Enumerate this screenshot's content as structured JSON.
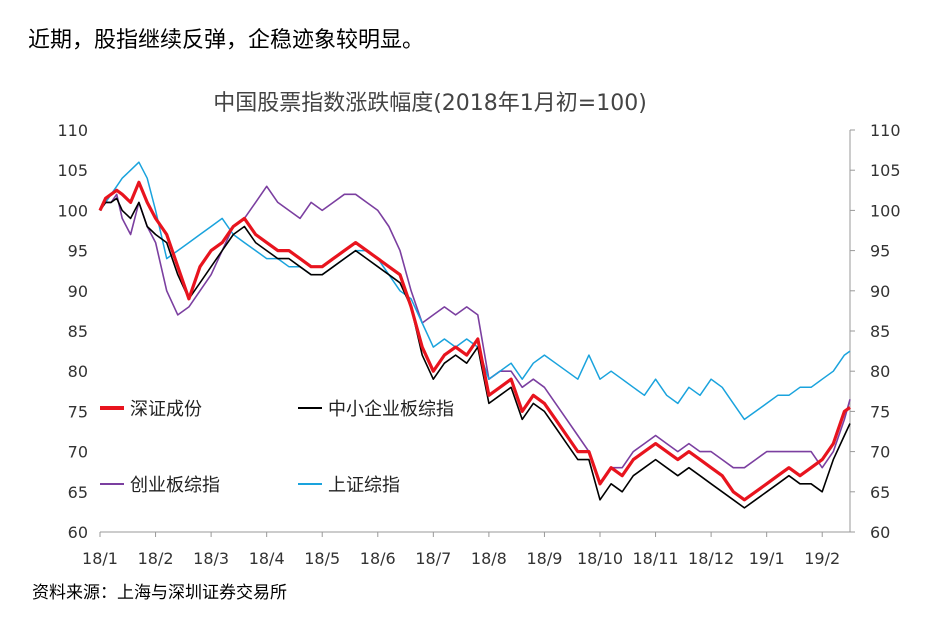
{
  "headline": "近期，股指继续反弹，企稳迹象较明显。",
  "source": "资料来源：上海与深圳证券交易所",
  "chart_data": {
    "type": "line",
    "title": "中国股票指数涨跌幅度(2018年1月初=100)",
    "ylim": [
      60,
      110
    ],
    "y_ticks": [
      60,
      65,
      70,
      75,
      80,
      85,
      90,
      95,
      100,
      105,
      110
    ],
    "y2_ticks": [
      60,
      65,
      70,
      75,
      80,
      85,
      90,
      95,
      100,
      105,
      110
    ],
    "x_ticks": [
      "18/1",
      "18/2",
      "18/3",
      "18/4",
      "18/5",
      "18/6",
      "18/7",
      "18/8",
      "18/9",
      "18/10",
      "18/11",
      "18/12",
      "19/1",
      "19/2"
    ],
    "legend_placement": "inside-lower-left",
    "series": [
      {
        "name": "深证成份",
        "color": "#e8141e",
        "x": [
          0,
          0.1,
          0.2,
          0.3,
          0.4,
          0.55,
          0.7,
          0.85,
          1.0,
          1.2,
          1.4,
          1.6,
          1.8,
          2.0,
          2.2,
          2.4,
          2.6,
          2.8,
          3.0,
          3.2,
          3.4,
          3.6,
          3.8,
          4.0,
          4.2,
          4.4,
          4.6,
          4.8,
          5.0,
          5.2,
          5.4,
          5.6,
          5.8,
          6.0,
          6.2,
          6.4,
          6.6,
          6.8,
          7.0,
          7.2,
          7.4,
          7.6,
          7.8,
          8.0,
          8.2,
          8.4,
          8.6,
          8.8,
          9.0,
          9.2,
          9.4,
          9.6,
          9.8,
          10.0,
          10.2,
          10.4,
          10.6,
          10.8,
          11.0,
          11.2,
          11.4,
          11.6,
          11.8,
          12.0,
          12.2,
          12.4,
          12.6,
          12.8,
          13.0,
          13.2,
          13.4,
          13.5
        ],
        "values": [
          100,
          101.5,
          102,
          102.5,
          102,
          101,
          103.5,
          101,
          99,
          97,
          93,
          89,
          93,
          95,
          96,
          98,
          99,
          97,
          96,
          95,
          95,
          94,
          93,
          93,
          94,
          95,
          96,
          95,
          94,
          93,
          92,
          88,
          83,
          80,
          82,
          83,
          82,
          84,
          77,
          78,
          79,
          75,
          77,
          76,
          74,
          72,
          70,
          70,
          66,
          68,
          67,
          69,
          70,
          71,
          70,
          69,
          70,
          69,
          68,
          67,
          65,
          64,
          65,
          66,
          67,
          68,
          67,
          68,
          69,
          71,
          75,
          75.5
        ]
      },
      {
        "name": "中小企业板综指",
        "color": "#000000",
        "x": [
          0,
          0.1,
          0.2,
          0.3,
          0.4,
          0.55,
          0.7,
          0.85,
          1.0,
          1.2,
          1.4,
          1.6,
          1.8,
          2.0,
          2.2,
          2.4,
          2.6,
          2.8,
          3.0,
          3.2,
          3.4,
          3.6,
          3.8,
          4.0,
          4.2,
          4.4,
          4.6,
          4.8,
          5.0,
          5.2,
          5.4,
          5.6,
          5.8,
          6.0,
          6.2,
          6.4,
          6.6,
          6.8,
          7.0,
          7.2,
          7.4,
          7.6,
          7.8,
          8.0,
          8.2,
          8.4,
          8.6,
          8.8,
          9.0,
          9.2,
          9.4,
          9.6,
          9.8,
          10.0,
          10.2,
          10.4,
          10.6,
          10.8,
          11.0,
          11.2,
          11.4,
          11.6,
          11.8,
          12.0,
          12.2,
          12.4,
          12.6,
          12.8,
          13.0,
          13.2,
          13.4,
          13.5
        ],
        "values": [
          100,
          101,
          101,
          101.5,
          100,
          99,
          101,
          98,
          97,
          96,
          92,
          89,
          91,
          93,
          95,
          97,
          98,
          96,
          95,
          94,
          94,
          93,
          92,
          92,
          93,
          94,
          95,
          94,
          93,
          92,
          91,
          88,
          82,
          79,
          81,
          82,
          81,
          83,
          76,
          77,
          78,
          74,
          76,
          75,
          73,
          71,
          69,
          69,
          64,
          66,
          65,
          67,
          68,
          69,
          68,
          67,
          68,
          67,
          66,
          65,
          64,
          63,
          64,
          65,
          66,
          67,
          66,
          66,
          65,
          69,
          72,
          73.5
        ]
      },
      {
        "name": "创业板综指",
        "color": "#7b3fa0",
        "x": [
          0,
          0.1,
          0.2,
          0.3,
          0.4,
          0.55,
          0.7,
          0.85,
          1.0,
          1.2,
          1.4,
          1.6,
          1.8,
          2.0,
          2.2,
          2.4,
          2.6,
          2.8,
          3.0,
          3.2,
          3.4,
          3.6,
          3.8,
          4.0,
          4.2,
          4.4,
          4.6,
          4.8,
          5.0,
          5.2,
          5.4,
          5.6,
          5.8,
          6.0,
          6.2,
          6.4,
          6.6,
          6.8,
          7.0,
          7.2,
          7.4,
          7.6,
          7.8,
          8.0,
          8.2,
          8.4,
          8.6,
          8.8,
          9.0,
          9.2,
          9.4,
          9.6,
          9.8,
          10.0,
          10.2,
          10.4,
          10.6,
          10.8,
          11.0,
          11.2,
          11.4,
          11.6,
          11.8,
          12.0,
          12.2,
          12.4,
          12.6,
          12.8,
          13.0,
          13.2,
          13.4,
          13.5
        ],
        "values": [
          100,
          101,
          101,
          102,
          99,
          97,
          101,
          98,
          96,
          90,
          87,
          88,
          90,
          92,
          95,
          98,
          99,
          101,
          103,
          101,
          100,
          99,
          101,
          100,
          101,
          102,
          102,
          101,
          100,
          98,
          95,
          90,
          86,
          87,
          88,
          87,
          88,
          87,
          79,
          80,
          80,
          78,
          79,
          78,
          76,
          74,
          72,
          70,
          66,
          68,
          68,
          70,
          71,
          72,
          71,
          70,
          71,
          70,
          70,
          69,
          68,
          68,
          69,
          70,
          70,
          70,
          70,
          70,
          68,
          70,
          74,
          76.5
        ]
      },
      {
        "name": "上证综指",
        "color": "#1aa3dd",
        "x": [
          0,
          0.1,
          0.2,
          0.3,
          0.4,
          0.55,
          0.7,
          0.85,
          1.0,
          1.2,
          1.4,
          1.6,
          1.8,
          2.0,
          2.2,
          2.4,
          2.6,
          2.8,
          3.0,
          3.2,
          3.4,
          3.6,
          3.8,
          4.0,
          4.2,
          4.4,
          4.6,
          4.8,
          5.0,
          5.2,
          5.4,
          5.6,
          5.8,
          6.0,
          6.2,
          6.4,
          6.6,
          6.8,
          7.0,
          7.2,
          7.4,
          7.6,
          7.8,
          8.0,
          8.2,
          8.4,
          8.6,
          8.8,
          9.0,
          9.2,
          9.4,
          9.6,
          9.8,
          10.0,
          10.2,
          10.4,
          10.6,
          10.8,
          11.0,
          11.2,
          11.4,
          11.6,
          11.8,
          12.0,
          12.2,
          12.4,
          12.6,
          12.8,
          13.0,
          13.2,
          13.4,
          13.5
        ],
        "values": [
          100,
          101,
          102,
          103,
          104,
          105,
          106,
          104,
          100,
          94,
          95,
          96,
          97,
          98,
          99,
          97,
          96,
          95,
          94,
          94,
          93,
          93,
          92,
          92,
          93,
          94,
          95,
          95,
          94,
          92,
          90,
          89,
          86,
          83,
          84,
          83,
          84,
          83,
          79,
          80,
          81,
          79,
          81,
          82,
          81,
          80,
          79,
          82,
          79,
          80,
          79,
          78,
          77,
          79,
          77,
          76,
          78,
          77,
          79,
          78,
          76,
          74,
          75,
          76,
          77,
          77,
          78,
          78,
          79,
          80,
          82,
          82.5
        ]
      }
    ]
  }
}
